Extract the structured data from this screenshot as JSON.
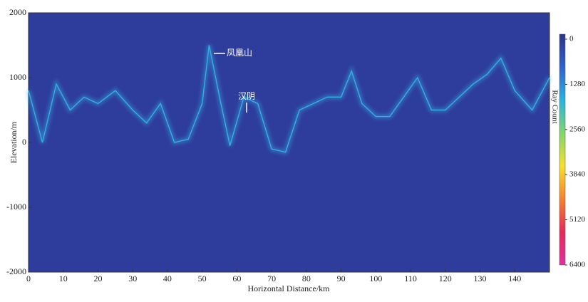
{
  "chart_data": {
    "type": "line",
    "x_label": "Horizontal Distance/km",
    "y_label": "Elevation/m",
    "xlim": [
      0,
      150
    ],
    "ylim": [
      -2000,
      2000
    ],
    "xticks": [
      0,
      10,
      20,
      30,
      40,
      50,
      60,
      70,
      80,
      90,
      100,
      110,
      120,
      130,
      140
    ],
    "yticks": [
      -2000,
      -1000,
      0,
      1000,
      2000
    ],
    "x": [
      0,
      4,
      8,
      12,
      16,
      20,
      25,
      30,
      34,
      38,
      42,
      46,
      50,
      52,
      55,
      58,
      62,
      66,
      70,
      74,
      78,
      82,
      86,
      90,
      93,
      96,
      100,
      104,
      108,
      112,
      116,
      120,
      124,
      128,
      132,
      136,
      140,
      145,
      150
    ],
    "series": [
      {
        "color": "#35b6e6",
        "values": [
          800,
          0,
          900,
          500,
          700,
          600,
          800,
          500,
          300,
          600,
          0,
          50,
          600,
          1500,
          700,
          -50,
          700,
          600,
          -100,
          -150,
          500,
          600,
          700,
          700,
          1100,
          600,
          400,
          400,
          700,
          1000,
          500,
          500,
          700,
          900,
          1050,
          1300,
          800,
          500,
          1000
        ]
      }
    ],
    "background": "#2e3c9c",
    "annotations": [
      "凤凰山",
      "汉阴"
    ],
    "colorbar": {
      "label": "Ray Count",
      "lim": [
        0,
        6400
      ],
      "ticks": [
        0,
        1280,
        2560,
        3840,
        5120,
        6400
      ],
      "colors": [
        "#2a3486",
        "#2f62d0",
        "#27b4e0",
        "#7fd86a",
        "#f6e02a",
        "#f6822a",
        "#e8285a",
        "#e0309c"
      ]
    }
  }
}
